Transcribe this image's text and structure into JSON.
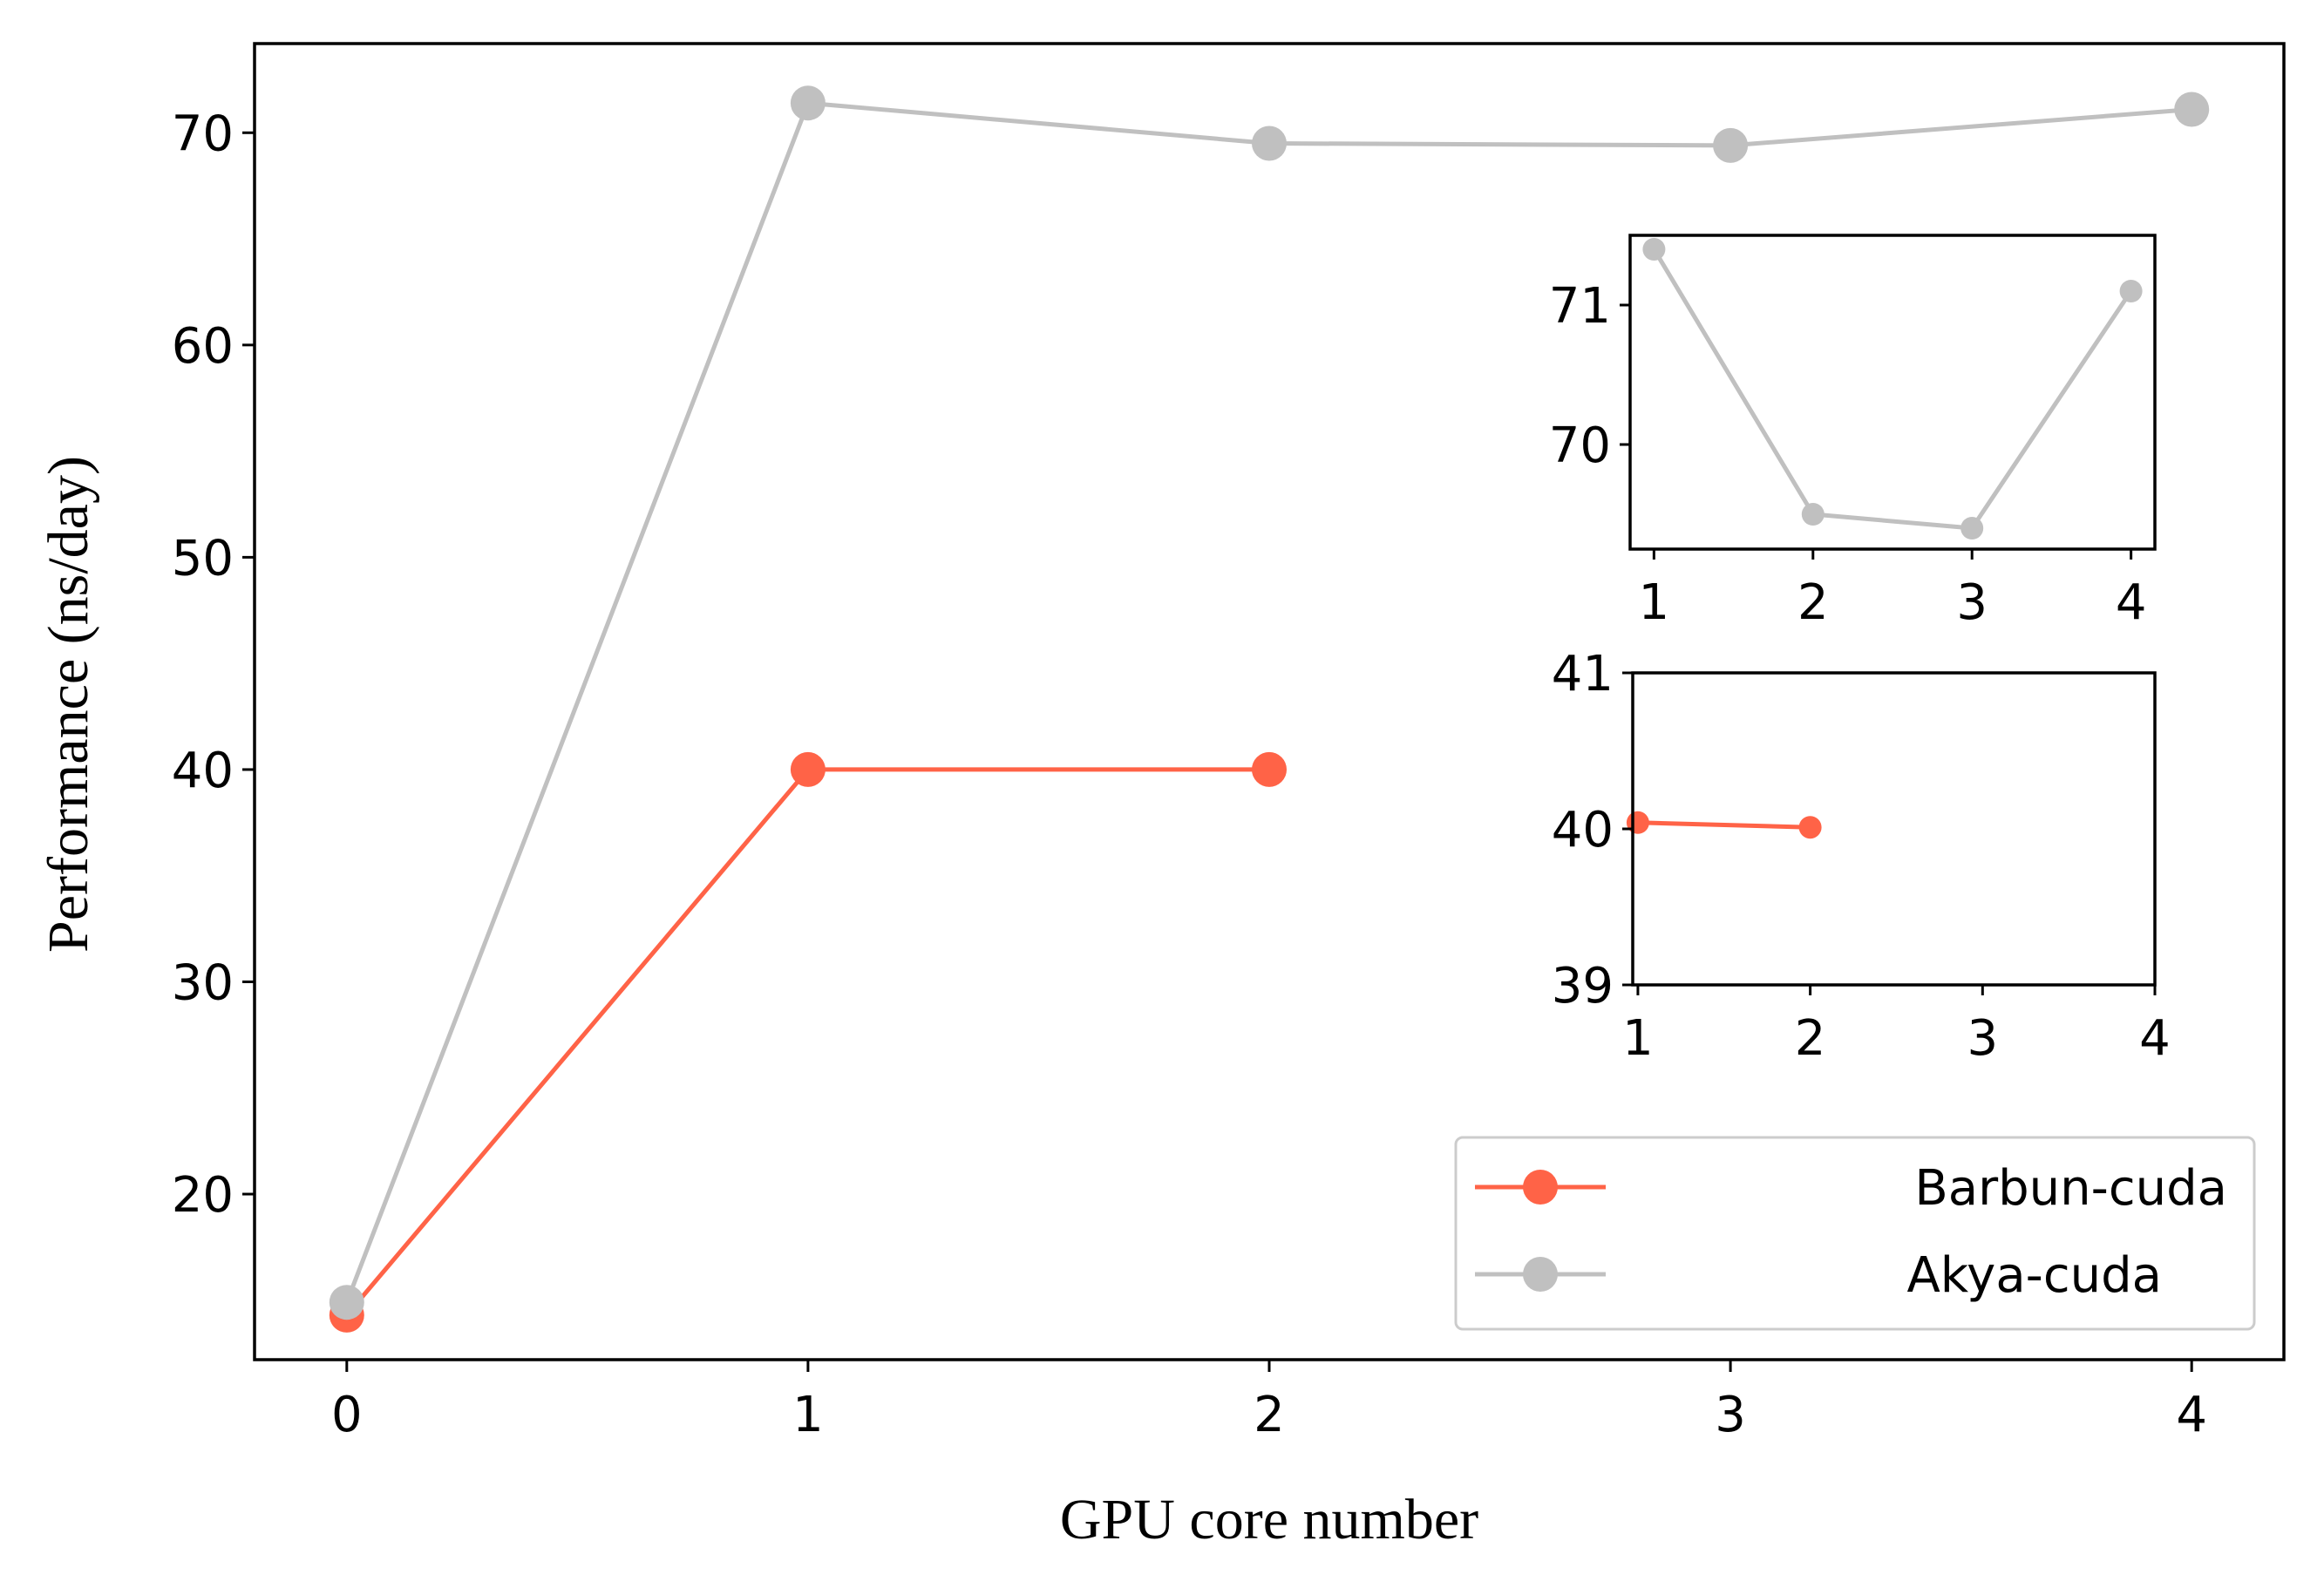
{
  "chart_data": [
    {
      "type": "line",
      "title": "",
      "xlabel": "GPU core number",
      "ylabel": "Performance (ns/day)",
      "xlim": [
        -0.2,
        4.2
      ],
      "ylim": [
        12.2,
        74.2
      ],
      "xticks": [
        0,
        1,
        2,
        3,
        4
      ],
      "yticks": [
        20,
        30,
        40,
        50,
        60,
        70
      ],
      "legend_position": "lower-right",
      "series": [
        {
          "name": "Barbun-cuda",
          "color": "#FF6347",
          "x": [
            0,
            1,
            2
          ],
          "y": [
            14.3,
            40.0,
            40.0
          ]
        },
        {
          "name": "Akya-cuda",
          "color": "#C0C0C0",
          "x": [
            0,
            1,
            2,
            3,
            4
          ],
          "y": [
            14.9,
            71.4,
            69.5,
            69.4,
            71.1
          ]
        }
      ]
    },
    {
      "type": "line",
      "title": "",
      "inset": "upper-right",
      "xlim": [
        0.85,
        4.15
      ],
      "ylim": [
        69.25,
        71.5
      ],
      "xticks": [
        1,
        2,
        3,
        4
      ],
      "yticks": [
        70,
        71
      ],
      "series": [
        {
          "name": "Akya-cuda",
          "color": "#C0C0C0",
          "x": [
            1,
            2,
            3,
            4
          ],
          "y": [
            71.4,
            69.5,
            69.4,
            71.1
          ]
        }
      ]
    },
    {
      "type": "line",
      "title": "",
      "inset": "middle-right",
      "xlim": [
        0.97,
        4.0
      ],
      "ylim": [
        39,
        41
      ],
      "xticks": [
        1,
        2,
        3,
        4
      ],
      "yticks": [
        39,
        40,
        41
      ],
      "series": [
        {
          "name": "Barbun-cuda",
          "color": "#FF6347",
          "x": [
            1,
            2
          ],
          "y": [
            40.04,
            40.01
          ]
        }
      ]
    }
  ]
}
